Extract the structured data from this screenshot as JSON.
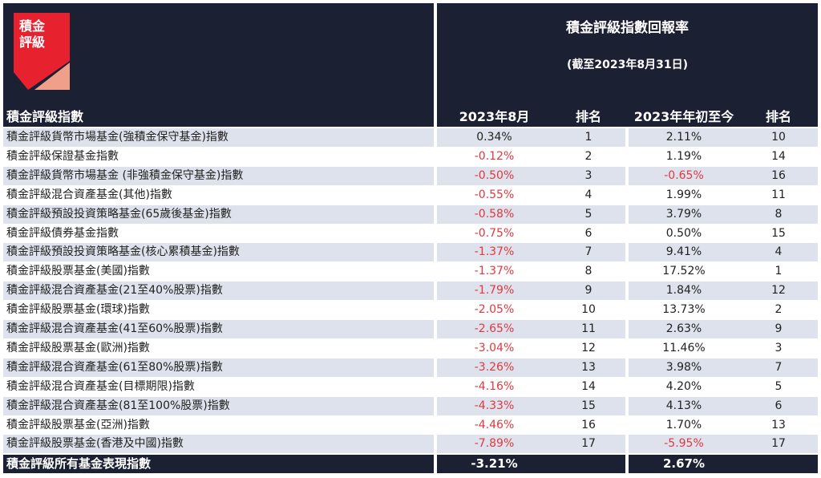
{
  "logo": {
    "text_line1": "積金",
    "text_line2": "評級",
    "colors": {
      "red": "#e8212e",
      "salmon": "#f0a08a"
    }
  },
  "header": {
    "title": "積金評級指數回報率",
    "subtitle": "(截至2023年8月31日)",
    "index_column": "積金評級指數",
    "month_column": "2023年8月",
    "month_rank_column": "排名",
    "ytd_column": "2023年年初至今",
    "ytd_rank_column": "排名"
  },
  "colors": {
    "header_bg": "#1c2033",
    "stripe": "#dde2ec",
    "negative": "#e0393e"
  },
  "rows": [
    {
      "name": "積金評級貨幣市場基金(強積金保守基金)指數",
      "month": "0.34%",
      "month_rank": "1",
      "ytd": "2.11%",
      "ytd_rank": "10"
    },
    {
      "name": "積金評級保證基金指數",
      "month": "-0.12%",
      "month_rank": "2",
      "ytd": "1.19%",
      "ytd_rank": "14"
    },
    {
      "name": "積金評級貨幣市場基金 (非強積金保守基金)指數",
      "month": "-0.50%",
      "month_rank": "3",
      "ytd": "-0.65%",
      "ytd_rank": "16"
    },
    {
      "name": "積金評級混合資產基金(其他)指數",
      "month": "-0.55%",
      "month_rank": "4",
      "ytd": "1.99%",
      "ytd_rank": "11"
    },
    {
      "name": "積金評級預設投資策略基金(65歲後基金)指數",
      "month": "-0.58%",
      "month_rank": "5",
      "ytd": "3.79%",
      "ytd_rank": "8"
    },
    {
      "name": "積金評級債券基金指數",
      "month": "-0.75%",
      "month_rank": "6",
      "ytd": "0.50%",
      "ytd_rank": "15"
    },
    {
      "name": "積金評級預設投資策略基金(核心累積基金)指數",
      "month": "-1.37%",
      "month_rank": "7",
      "ytd": "9.41%",
      "ytd_rank": "4"
    },
    {
      "name": "積金評級股票基金(美國)指數",
      "month": "-1.37%",
      "month_rank": "8",
      "ytd": "17.52%",
      "ytd_rank": "1"
    },
    {
      "name": "積金評級混合資產基金(21至40%股票)指數",
      "month": "-1.79%",
      "month_rank": "9",
      "ytd": "1.84%",
      "ytd_rank": "12"
    },
    {
      "name": "積金評級股票基金(環球)指數",
      "month": "-2.05%",
      "month_rank": "10",
      "ytd": "13.73%",
      "ytd_rank": "2"
    },
    {
      "name": "積金評級混合資產基金(41至60%股票)指數",
      "month": "-2.65%",
      "month_rank": "11",
      "ytd": "2.63%",
      "ytd_rank": "9"
    },
    {
      "name": "積金評級股票基金(歐洲)指數",
      "month": "-3.04%",
      "month_rank": "12",
      "ytd": "11.46%",
      "ytd_rank": "3"
    },
    {
      "name": "積金評級混合資產基金(61至80%股票)指數",
      "month": "-3.26%",
      "month_rank": "13",
      "ytd": "3.98%",
      "ytd_rank": "7"
    },
    {
      "name": "積金評級混合資產基金(目標期限)指數",
      "month": "-4.16%",
      "month_rank": "14",
      "ytd": "4.20%",
      "ytd_rank": "5"
    },
    {
      "name": "積金評級混合資產基金(81至100%股票)指數",
      "month": "-4.33%",
      "month_rank": "15",
      "ytd": "4.13%",
      "ytd_rank": "6"
    },
    {
      "name": "積金評級股票基金(亞洲)指數",
      "month": "-4.46%",
      "month_rank": "16",
      "ytd": "1.70%",
      "ytd_rank": "13"
    },
    {
      "name": "積金評級股票基金(香港及中國)指數",
      "month": "-7.89%",
      "month_rank": "17",
      "ytd": "-5.95%",
      "ytd_rank": "17"
    }
  ],
  "total": {
    "name": "積金評級所有基金表現指數",
    "month": "-3.21%",
    "ytd": "2.67%"
  }
}
